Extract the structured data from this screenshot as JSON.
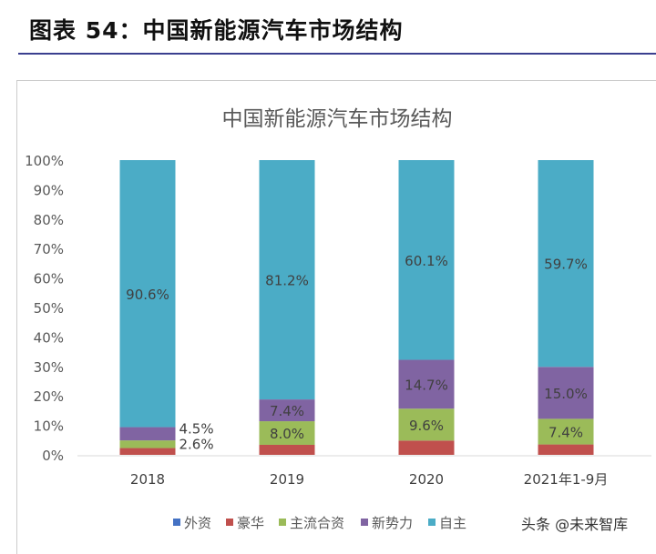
{
  "header": {
    "title": "图表 54：中国新能源汽车市场结构"
  },
  "chart_data": {
    "type": "bar",
    "stacked": true,
    "percent": true,
    "title": "中国新能源汽车市场结构",
    "categories": [
      "2018",
      "2019",
      "2020",
      "2021年1-9月"
    ],
    "yticks": [
      "0%",
      "10%",
      "20%",
      "30%",
      "40%",
      "50%",
      "60%",
      "70%",
      "80%",
      "90%",
      "100%"
    ],
    "ylim": [
      0,
      100
    ],
    "legend": "bottom",
    "grid": false,
    "series": [
      {
        "name": "外资",
        "color": "#4472c4",
        "values": [
          0,
          0,
          0,
          0
        ],
        "labels": [
          "",
          "",
          "",
          ""
        ]
      },
      {
        "name": "豪华",
        "color": "#c0504d",
        "values": [
          2.3,
          3.4,
          4.3,
          3.0
        ],
        "labels": [
          "",
          "",
          "",
          ""
        ]
      },
      {
        "name": "主流合资",
        "color": "#9bbb59",
        "values": [
          2.6,
          8.0,
          9.6,
          7.4
        ],
        "labels": [
          "2.6%",
          "8.0%",
          "9.6%",
          "7.4%"
        ]
      },
      {
        "name": "新势力",
        "color": "#8064a2",
        "values": [
          4.5,
          7.4,
          14.7,
          15.0
        ],
        "labels": [
          "4.5%",
          "7.4%",
          "14.7%",
          "15.0%"
        ]
      },
      {
        "name": "自主",
        "color": "#4bacc6",
        "values": [
          90.6,
          81.2,
          60.1,
          59.7
        ],
        "labels": [
          "90.6%",
          "81.2%",
          "60.1%",
          "59.7%"
        ]
      }
    ]
  },
  "watermark": "头条 @未来智库"
}
